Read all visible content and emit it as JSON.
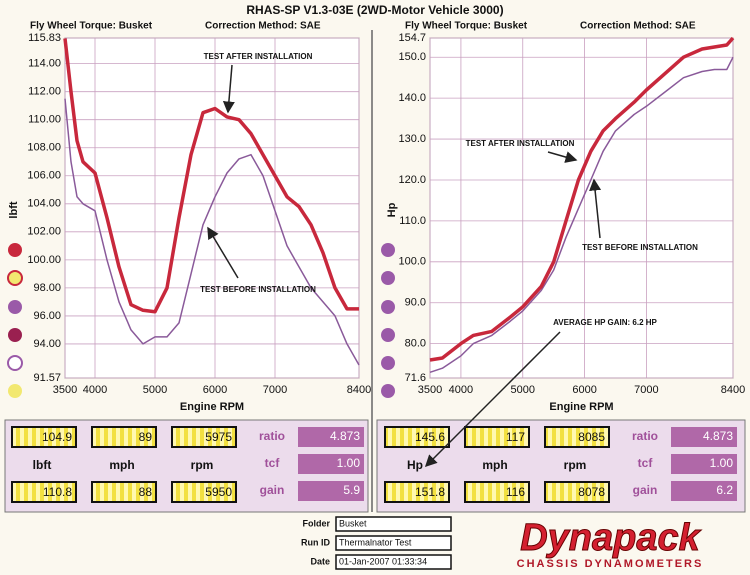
{
  "header": {
    "title": "RHAS-SP V1.3-03E (2WD-Motor Vehicle 3000)",
    "left_info": {
      "torque": "Fly Wheel Torque: Busket",
      "correction": "Correction Method: SAE"
    },
    "right_info": {
      "torque": "Fly Wheel Torque: Busket",
      "correction": "Correction Method: SAE"
    }
  },
  "chart_data": [
    {
      "type": "line",
      "ylabel": "lbft",
      "xlabel": "Engine RPM",
      "x": [
        3500,
        3600,
        3700,
        3800,
        4000,
        4200,
        4400,
        4600,
        4800,
        5000,
        5200,
        5400,
        5600,
        5800,
        6000,
        6200,
        6400,
        6600,
        6800,
        7000,
        7200,
        7400,
        7600,
        7800,
        8000,
        8200,
        8400
      ],
      "series": [
        {
          "color": "#c8283c",
          "values": [
            115.8,
            112,
            108.5,
            107,
            106.2,
            103,
            99.5,
            96.8,
            96.4,
            96.3,
            98,
            103,
            107.5,
            110.5,
            110.8,
            110.2,
            110,
            109,
            107.5,
            106,
            104.5,
            103.8,
            102.5,
            100.5,
            98,
            96.5,
            96.5
          ]
        },
        {
          "color": "#8a5a9a",
          "values": [
            111.5,
            107,
            104.5,
            104,
            103.5,
            100,
            97,
            95,
            94,
            94.5,
            94.5,
            95.5,
            99,
            102.5,
            104.5,
            106.2,
            107.2,
            107.5,
            106,
            103.5,
            101,
            99.5,
            98,
            97,
            96,
            94,
            92.5
          ]
        }
      ],
      "xlim": [
        3500,
        8400
      ],
      "xticks": [
        3500,
        4000,
        5000,
        6000,
        7000,
        8400
      ],
      "ylim": [
        91.57,
        115.83
      ],
      "yticks": [
        115.83,
        {
          "value": 114,
          "label": "114.00"
        },
        {
          "value": 112,
          "label": "112.00"
        },
        {
          "value": 110,
          "label": "110.00"
        },
        {
          "value": 108,
          "label": "108.00"
        },
        {
          "value": 106,
          "label": "106.00"
        },
        {
          "value": 104,
          "label": "104.00"
        },
        {
          "value": 102,
          "label": "102.00"
        },
        {
          "value": 100,
          "label": "100.00"
        },
        {
          "value": 98,
          "label": "98.00"
        },
        {
          "value": 96,
          "label": "96.00"
        },
        {
          "value": 94,
          "label": "94.00"
        },
        91.57
      ],
      "grid": true,
      "annotations": [
        "TEST AFTER INSTALLATION",
        "TEST BEFORE INSTALLATION"
      ]
    },
    {
      "type": "line",
      "ylabel": "Hp",
      "xlabel": "Engine RPM",
      "x": [
        3500,
        3700,
        4000,
        4200,
        4500,
        4800,
        5000,
        5300,
        5500,
        5700,
        5900,
        6100,
        6300,
        6500,
        6800,
        7000,
        7300,
        7600,
        7900,
        8100,
        8300,
        8400
      ],
      "series": [
        {
          "color": "#c8283c",
          "values": [
            76,
            76.5,
            80,
            82,
            83,
            86.5,
            89,
            94,
            100,
            110,
            120,
            127,
            132,
            135,
            139,
            142,
            146,
            150,
            152,
            152.5,
            153,
            154.7
          ]
        },
        {
          "color": "#8a5a9a",
          "values": [
            73,
            74,
            77,
            80,
            82,
            85.5,
            88,
            93,
            98,
            106,
            113,
            120,
            127,
            132,
            136,
            138,
            141.5,
            145,
            146.5,
            147,
            147,
            150
          ]
        }
      ],
      "xlim": [
        3500,
        8400
      ],
      "xticks": [
        3500,
        4000,
        5000,
        6000,
        7000,
        8400
      ],
      "ylim": [
        71.6,
        154.7
      ],
      "yticks": [
        154.7,
        {
          "value": 150,
          "label": "150.0"
        },
        {
          "value": 140,
          "label": "140.0"
        },
        {
          "value": 130,
          "label": "130.0"
        },
        {
          "value": 120,
          "label": "120.0"
        },
        {
          "value": 110,
          "label": "110.0"
        },
        {
          "value": 100,
          "label": "100.0"
        },
        {
          "value": 90,
          "label": "90.0"
        },
        {
          "value": 80,
          "label": "80.0"
        },
        71.6
      ],
      "grid": true,
      "annotations": [
        "TEST AFTER INSTALLATION",
        "TEST BEFORE INSTALLATION",
        "AVERAGE HP GAIN: 6.2 HP"
      ]
    }
  ],
  "panels": [
    {
      "top": [
        "104.9",
        "89",
        "5975"
      ],
      "units": [
        "lbft",
        "mph",
        "rpm"
      ],
      "bottom": [
        "110.8",
        "88",
        "5950"
      ],
      "params": [
        {
          "label": "ratio",
          "value": "4.873"
        },
        {
          "label": "tcf",
          "value": "1.00"
        },
        {
          "label": "gain",
          "value": "5.9"
        }
      ]
    },
    {
      "top": [
        "145.6",
        "117",
        "8085"
      ],
      "units": [
        "Hp",
        "mph",
        "rpm"
      ],
      "bottom": [
        "151.8",
        "116",
        "8078"
      ],
      "params": [
        {
          "label": "ratio",
          "value": "4.873"
        },
        {
          "label": "tcf",
          "value": "1.00"
        },
        {
          "label": "gain",
          "value": "6.2"
        }
      ]
    }
  ],
  "footer": {
    "fields": [
      {
        "label": "Folder",
        "value": "Busket"
      },
      {
        "label": "Run ID",
        "value": "Thermalnator Test"
      },
      {
        "label": "Date",
        "value": "01-Jan-2007 01:33:34"
      }
    ],
    "logo": "Dynapack",
    "tagline": "CHASSIS DYNAMOMETERS"
  }
}
